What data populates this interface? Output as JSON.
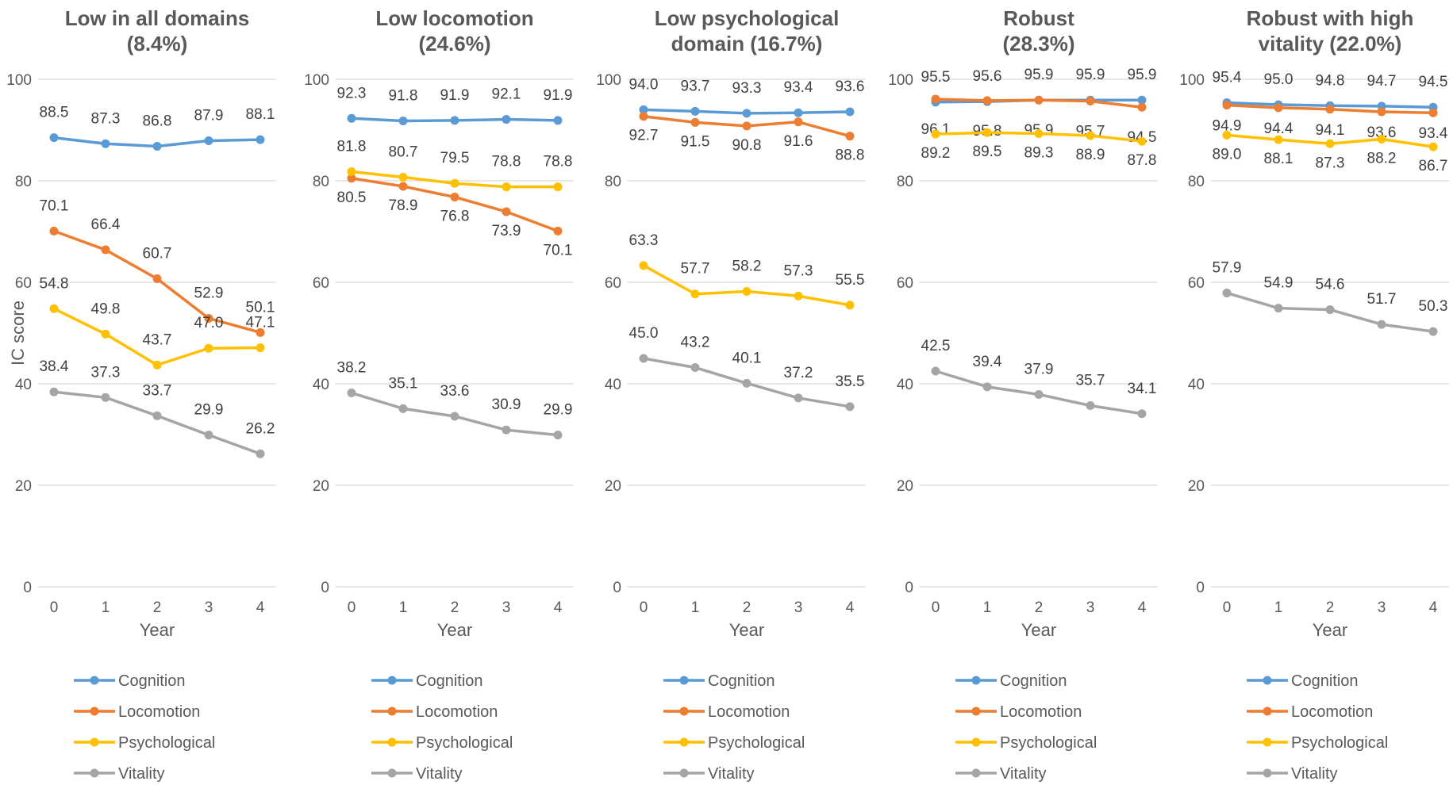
{
  "chart_data": {
    "type": "line",
    "ylabel": "IC score",
    "xlabel": "Year",
    "x": [
      0,
      1,
      2,
      3,
      4
    ],
    "ylim": [
      0,
      100
    ],
    "yticks": [
      0,
      20,
      40,
      60,
      80,
      100
    ],
    "grid": true,
    "legend_position": "bottom",
    "series_colors": {
      "Cognition": "#5b9bd5",
      "Locomotion": "#ed7d31",
      "Psychological": "#ffc000",
      "Vitality": "#a5a5a5"
    },
    "panels": [
      {
        "title_lines": [
          "Low in all domains",
          "(8.4%)"
        ],
        "series": [
          {
            "name": "Cognition",
            "values": [
              88.5,
              87.3,
              86.8,
              87.9,
              88.1
            ]
          },
          {
            "name": "Locomotion",
            "values": [
              70.1,
              66.4,
              60.7,
              52.9,
              50.1
            ]
          },
          {
            "name": "Psychological",
            "values": [
              54.8,
              49.8,
              43.7,
              47.0,
              47.1
            ]
          },
          {
            "name": "Vitality",
            "values": [
              38.4,
              37.3,
              33.7,
              29.9,
              26.2
            ]
          }
        ]
      },
      {
        "title_lines": [
          "Low locomotion",
          "(24.6%)"
        ],
        "series": [
          {
            "name": "Cognition",
            "values": [
              92.3,
              91.8,
              91.9,
              92.1,
              91.9
            ]
          },
          {
            "name": "Locomotion",
            "values": [
              80.5,
              78.9,
              76.8,
              73.9,
              70.1
            ]
          },
          {
            "name": "Psychological",
            "values": [
              81.8,
              80.7,
              79.5,
              78.8,
              78.8
            ]
          },
          {
            "name": "Vitality",
            "values": [
              38.2,
              35.1,
              33.6,
              30.9,
              29.9
            ]
          }
        ]
      },
      {
        "title_lines": [
          "Low psychological",
          "domain (16.7%)"
        ],
        "series": [
          {
            "name": "Cognition",
            "values": [
              94.0,
              93.7,
              93.3,
              93.4,
              93.6
            ]
          },
          {
            "name": "Locomotion",
            "values": [
              92.7,
              91.5,
              90.8,
              91.6,
              88.8
            ]
          },
          {
            "name": "Psychological",
            "values": [
              63.3,
              57.7,
              58.2,
              57.3,
              55.5
            ]
          },
          {
            "name": "Vitality",
            "values": [
              45.0,
              43.2,
              40.1,
              37.2,
              35.5
            ]
          }
        ]
      },
      {
        "title_lines": [
          "Robust",
          "(28.3%)"
        ],
        "series": [
          {
            "name": "Cognition",
            "values": [
              95.5,
              95.6,
              95.9,
              95.9,
              95.9
            ]
          },
          {
            "name": "Locomotion",
            "values": [
              96.1,
              95.8,
              95.9,
              95.7,
              94.5
            ]
          },
          {
            "name": "Psychological",
            "values": [
              89.2,
              89.5,
              89.3,
              88.9,
              87.8
            ]
          },
          {
            "name": "Vitality",
            "values": [
              42.5,
              39.4,
              37.9,
              35.7,
              34.1
            ]
          }
        ]
      },
      {
        "title_lines": [
          "Robust with high",
          "vitality (22.0%)"
        ],
        "series": [
          {
            "name": "Cognition",
            "values": [
              95.4,
              95.0,
              94.8,
              94.7,
              94.5
            ]
          },
          {
            "name": "Locomotion",
            "values": [
              94.9,
              94.4,
              94.1,
              93.6,
              93.4
            ]
          },
          {
            "name": "Psychological",
            "values": [
              89.0,
              88.1,
              87.3,
              88.2,
              86.7
            ]
          },
          {
            "name": "Vitality",
            "values": [
              57.9,
              54.9,
              54.6,
              51.7,
              50.3
            ]
          }
        ]
      }
    ]
  }
}
